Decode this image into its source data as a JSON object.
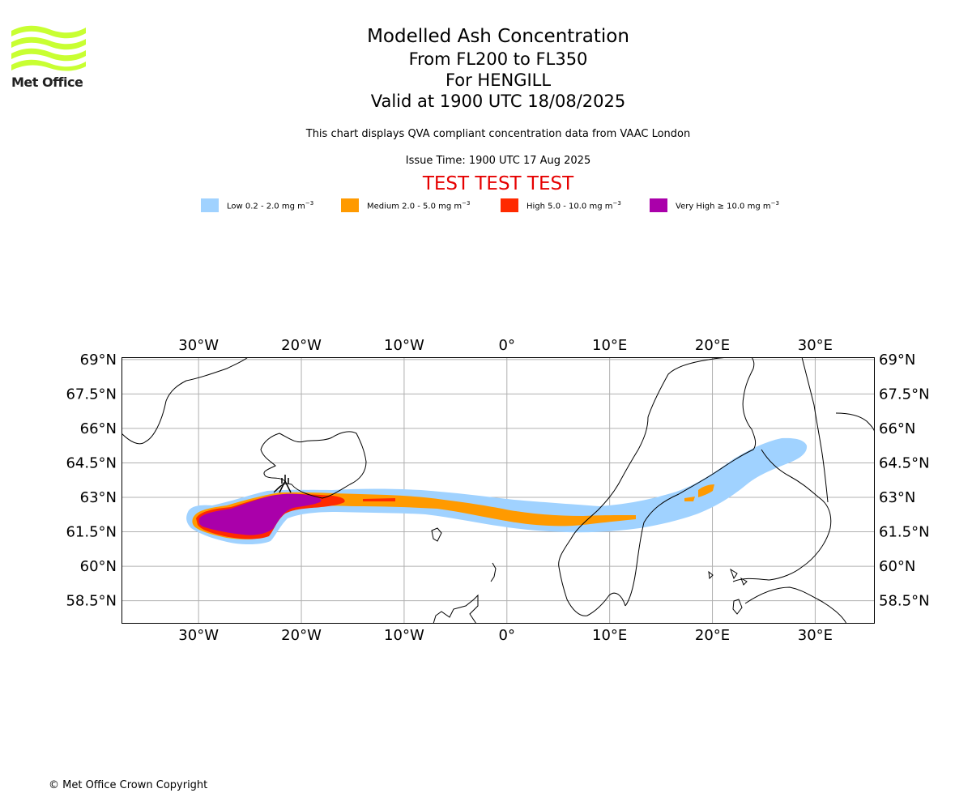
{
  "header": {
    "logo_text": "Met Office",
    "title": "Modelled Ash Concentration",
    "level_range": "From FL200 to FL350",
    "volcano_line": "For HENGILL",
    "valid_time": "Valid at 1900 UTC 18/08/2025",
    "compliance_note": "This chart displays QVA compliant concentration data from VAAC London",
    "issue_time": "Issue Time: 1900 UTC 17 Aug 2025",
    "test_banner": "TEST TEST TEST"
  },
  "legend": [
    {
      "label": "Low 0.2 - 2.0 mg m",
      "sup": "−3",
      "color": "#a0d2ff"
    },
    {
      "label": "Medium 2.0 - 5.0 mg m",
      "sup": "−3",
      "color": "#ff9a00"
    },
    {
      "label": "High 5.0 - 10.0 mg m",
      "sup": "−3",
      "color": "#ff2a00"
    },
    {
      "label": "Very High  ≥  10.0 mg m",
      "sup": "−3",
      "color": "#aa00aa"
    }
  ],
  "map": {
    "lon_range": [
      -37.5,
      35.8
    ],
    "lat_range": [
      57.5,
      69.1
    ],
    "lon_ticks": [
      {
        "v": -30,
        "label": "30°W"
      },
      {
        "v": -20,
        "label": "20°W"
      },
      {
        "v": -10,
        "label": "10°W"
      },
      {
        "v": 0,
        "label": "0°"
      },
      {
        "v": 10,
        "label": "10°E"
      },
      {
        "v": 20,
        "label": "20°E"
      },
      {
        "v": 30,
        "label": "30°E"
      }
    ],
    "lat_ticks": [
      {
        "v": 69,
        "label": "69°N"
      },
      {
        "v": 67.5,
        "label": "67.5°N"
      },
      {
        "v": 66,
        "label": "66°N"
      },
      {
        "v": 64.5,
        "label": "64.5°N"
      },
      {
        "v": 63,
        "label": "63°N"
      },
      {
        "v": 61.5,
        "label": "61.5°N"
      },
      {
        "v": 60,
        "label": "60°N"
      },
      {
        "v": 58.5,
        "label": "58.5°N"
      }
    ],
    "gridlines": true
  },
  "footer": {
    "copyright": "© Met Office Crown Copyright"
  }
}
